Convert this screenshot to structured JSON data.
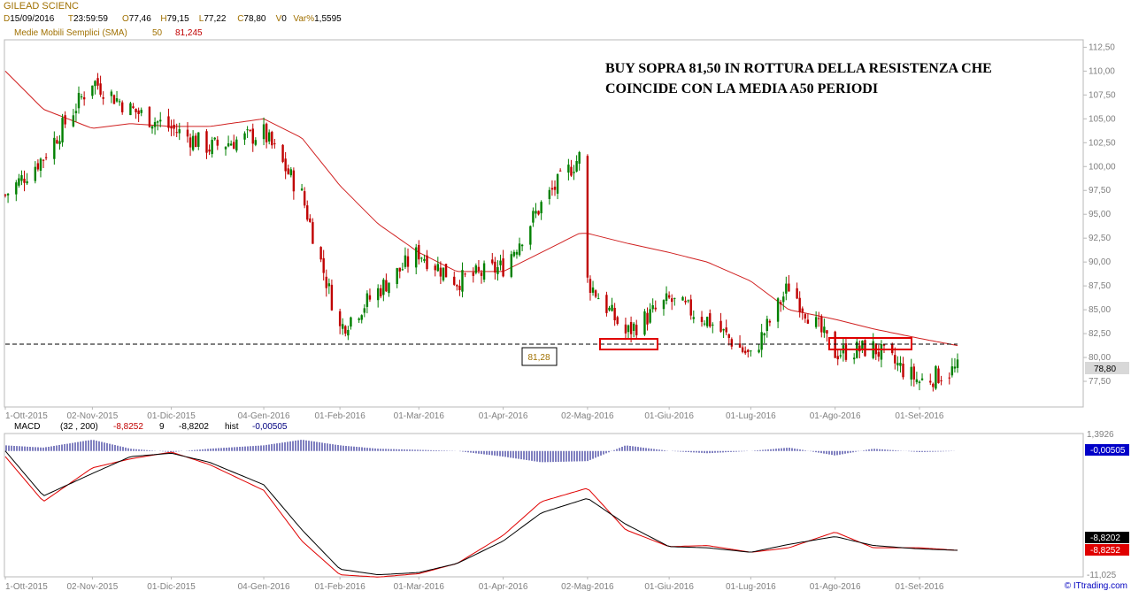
{
  "header": {
    "symbol": "GILEAD SCIENC",
    "quote_line": [
      {
        "label": "D",
        "value": "15/09/2016"
      },
      {
        "label": "T",
        "value": "23:59:59"
      },
      {
        "label": "O",
        "value": "77,46"
      },
      {
        "label": "H",
        "value": "79,15"
      },
      {
        "label": "L",
        "value": "77,22"
      },
      {
        "label": "C",
        "value": "78,80"
      },
      {
        "label": "V",
        "value": "0"
      },
      {
        "label": "Var%",
        "value": "1,5595"
      }
    ],
    "sma_label": "Medie Mobili Semplici (SMA)",
    "sma_period": "50",
    "sma_value": "81,245"
  },
  "annotation": {
    "line1": "BUY SOPRA 81,50 IN ROTTURA DELLA RESISTENZA CHE",
    "line2": "COINCIDE CON LA MEDIA  A50 PERIODI"
  },
  "colors": {
    "up": "#008000",
    "down": "#c00000",
    "sma": "#d02020",
    "macd": "#000000",
    "signal": "#e00000",
    "hist": "#000080",
    "box": "#e00000"
  },
  "price_axis": {
    "ticks": [
      "112,50",
      "110,00",
      "107,50",
      "105,00",
      "102,50",
      "100,00",
      "97,50",
      "95,00",
      "92,50",
      "90,00",
      "87,50",
      "85,00",
      "82,50",
      "80,00",
      "77,50"
    ],
    "last": "78,80",
    "level_label": "81,28"
  },
  "macd_panel": {
    "label": "MACD",
    "params": "(32 , 200)",
    "macd_value": "-8,8252",
    "signal_period": "9",
    "signal_value": "-8,8202",
    "hist_label": "hist",
    "hist_value": "-0,00505",
    "axis_top": "1,3926",
    "axis_bottom": "-11,025",
    "badge_hist": "-0,00505",
    "badge_signal": "-8,8202",
    "badge_macd": "-8,8252"
  },
  "date_labels": [
    "1-Ott-2015",
    "02-Nov-2015",
    "01-Dic-2015",
    "04-Gen-2016",
    "01-Feb-2016",
    "01-Mar-2016",
    "01-Apr-2016",
    "02-Mag-2016",
    "01-Giu-2016",
    "01-Lug-2016",
    "01-Ago-2016",
    "01-Set-2016"
  ],
  "watermark": "© ITtrading.com",
  "chart_data": [
    {
      "type": "candlestick",
      "title": "GILEAD SCIENC",
      "ylim": [
        75,
        113
      ],
      "resistance_level": 81.28,
      "sma_period": 50,
      "x": [
        "2015-10-01",
        "2015-10-15",
        "2015-11-02",
        "2015-11-16",
        "2015-12-01",
        "2015-12-15",
        "2016-01-04",
        "2016-01-18",
        "2016-02-01",
        "2016-02-15",
        "2016-03-01",
        "2016-03-15",
        "2016-04-01",
        "2016-04-15",
        "2016-04-29",
        "2016-05-02",
        "2016-05-16",
        "2016-06-01",
        "2016-06-15",
        "2016-07-01",
        "2016-07-15",
        "2016-08-01",
        "2016-08-15",
        "2016-09-01",
        "2016-09-15"
      ],
      "close": [
        97.0,
        101.0,
        109.0,
        106.0,
        104.0,
        102.0,
        103.5,
        97.0,
        83.0,
        87.0,
        91.0,
        88.0,
        89.5,
        96.0,
        101.0,
        88.0,
        82.5,
        86.0,
        84.0,
        80.0,
        87.5,
        80.5,
        81.0,
        77.5,
        78.8
      ],
      "sma": [
        110,
        106,
        104,
        104.5,
        104.2,
        104.2,
        105.0,
        103.0,
        98.0,
        94.0,
        91.0,
        89.0,
        89.0,
        91.0,
        93.0,
        93.0,
        92.0,
        91.0,
        90.0,
        88.0,
        85.0,
        84.0,
        83.0,
        82.0,
        81.245
      ]
    },
    {
      "type": "line",
      "title": "MACD",
      "ylim": [
        -11.025,
        1.3926
      ],
      "x": [
        "2015-10-01",
        "2015-10-15",
        "2015-11-02",
        "2015-11-16",
        "2015-12-01",
        "2015-12-15",
        "2016-01-04",
        "2016-01-18",
        "2016-02-01",
        "2016-02-15",
        "2016-03-01",
        "2016-03-15",
        "2016-04-01",
        "2016-04-15",
        "2016-05-02",
        "2016-05-16",
        "2016-06-01",
        "2016-06-15",
        "2016-07-01",
        "2016-07-15",
        "2016-08-01",
        "2016-08-15",
        "2016-09-01",
        "2016-09-15"
      ],
      "series": [
        {
          "name": "MACD",
          "values": [
            0.0,
            -4.0,
            -2.0,
            -0.5,
            -0.2,
            -1.0,
            -3.0,
            -7.0,
            -10.5,
            -11.0,
            -10.8,
            -10.0,
            -8.0,
            -5.5,
            -4.2,
            -6.5,
            -8.5,
            -8.6,
            -9.0,
            -8.3,
            -7.6,
            -8.4,
            -8.7,
            -8.8252
          ]
        },
        {
          "name": "Signal",
          "values": [
            -0.5,
            -4.5,
            -1.5,
            -0.7,
            -0.1,
            -1.2,
            -3.5,
            -8.0,
            -11.0,
            -11.2,
            -10.9,
            -10.0,
            -7.5,
            -4.5,
            -3.3,
            -7.0,
            -8.5,
            -8.4,
            -9.0,
            -8.6,
            -7.2,
            -8.6,
            -8.6,
            -8.8202
          ]
        },
        {
          "name": "hist",
          "values": [
            0.5,
            0.3,
            1.0,
            0.2,
            -0.1,
            0.2,
            0.5,
            1.0,
            0.5,
            0.2,
            0.1,
            0.0,
            -0.5,
            -1.0,
            -0.9,
            0.5,
            0.0,
            -0.2,
            0.0,
            0.3,
            -0.4,
            0.2,
            -0.1,
            -0.00505
          ]
        }
      ]
    }
  ]
}
